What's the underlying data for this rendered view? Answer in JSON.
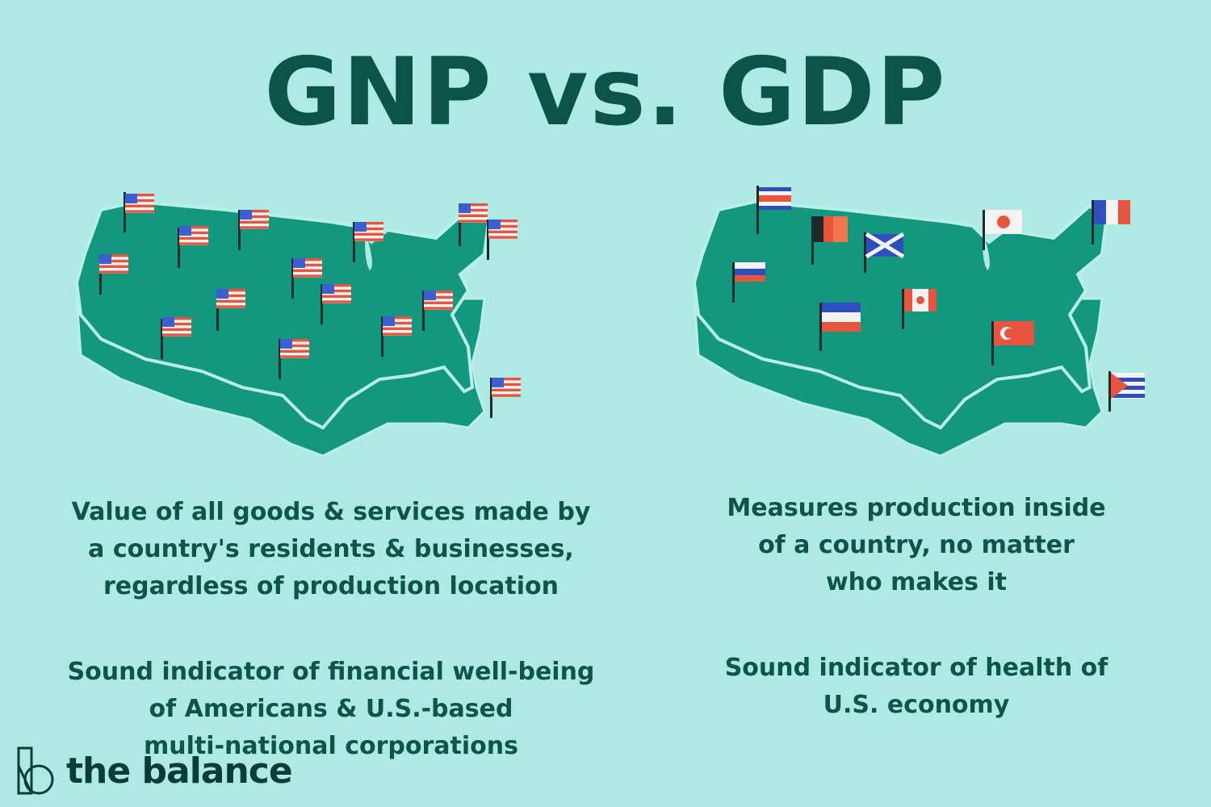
{
  "title": "GNP vs. GDP",
  "left": {
    "heading_map": "us-map-with-american-flags",
    "paragraph1": "Value of all goods & services made by\na country's residents & businesses,\nregardless of production location",
    "paragraph2": "Sound indicator of financial well-being\nof Americans & U.S.-based\nmulti-national corporations"
  },
  "right": {
    "heading_map": "us-map-with-foreign-flags",
    "paragraph1": "Measures production inside\nof a country, no matter\nwho makes it",
    "paragraph2": "Sound indicator of health of\nU.S. economy"
  },
  "brand": {
    "name": "the balance",
    "logo_icon": "the-balance-logo-icon"
  },
  "colors": {
    "background": "#aeeae3",
    "map_fill": "#13977f",
    "map_outline": "#b9f0e6",
    "text": "#0e5548"
  }
}
